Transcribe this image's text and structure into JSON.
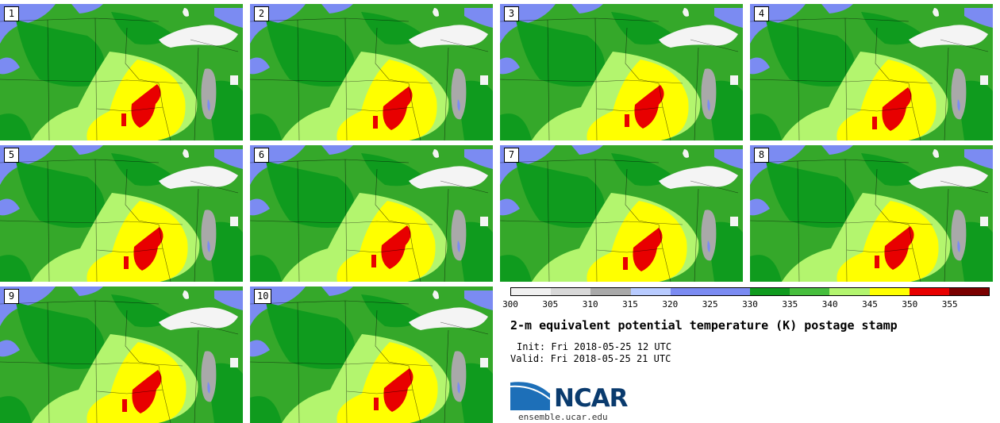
{
  "panels": [
    {
      "label": "1"
    },
    {
      "label": "2"
    },
    {
      "label": "3"
    },
    {
      "label": "4"
    },
    {
      "label": "5"
    },
    {
      "label": "6"
    },
    {
      "label": "7"
    },
    {
      "label": "8"
    },
    {
      "label": "9"
    },
    {
      "label": "10"
    }
  ],
  "colorbar": {
    "colors": [
      "#f0f0f0",
      "#d8d8d8",
      "#a9a9a9",
      "#b8cbff",
      "#7b8bf2",
      "#7b8bf2",
      "#0f9b1e",
      "#46be3c",
      "#b3f56e",
      "#ffff00",
      "#e80000",
      "#7a0000"
    ],
    "ticks": [
      "300",
      "305",
      "310",
      "315",
      "320",
      "325",
      "330",
      "335",
      "340",
      "345",
      "350",
      "355"
    ]
  },
  "title": "2-m equivalent potential temperature (K) postage stamp",
  "init": "Init: Fri 2018-05-25 12 UTC",
  "valid": "Valid: Fri 2018-05-25 21 UTC",
  "logo_text": "NCAR",
  "site": "ensemble.ucar.edu",
  "map_colors": {
    "darkgreen": "#0f9b1e",
    "green": "#35a82a",
    "lightgreen": "#b3f56e",
    "yellow": "#ffff00",
    "red": "#e80000",
    "blue": "#7b8bf2",
    "white": "#f4f4f4",
    "gray": "#a9a9a9"
  }
}
